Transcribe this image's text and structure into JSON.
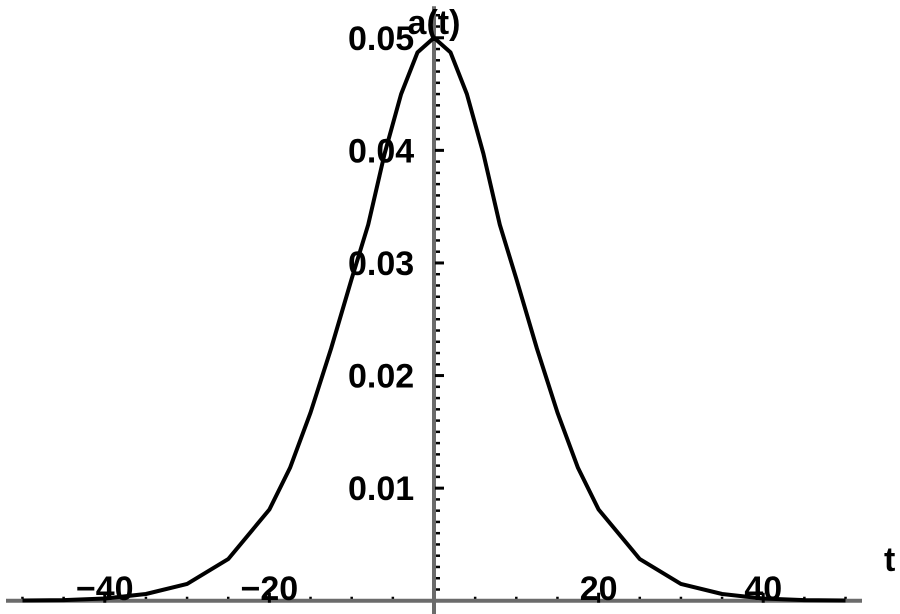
{
  "chart_data": {
    "type": "line",
    "title": "",
    "xlabel": "t",
    "ylabel": "a(t)",
    "xlim": [
      -52,
      52
    ],
    "ylim": [
      -0.001,
      0.053
    ],
    "grid": false,
    "x_ticks": [
      -40,
      -20,
      20,
      40
    ],
    "x_tick_labels": [
      "−40",
      "−20",
      "20",
      "40"
    ],
    "y_ticks": [
      0.01,
      0.02,
      0.03,
      0.04,
      0.05
    ],
    "y_tick_labels": [
      "0.01",
      "0.02",
      "0.03",
      "0.04",
      "0.05"
    ],
    "series": [
      {
        "x": [
          -50,
          -45,
          -40,
          -35,
          -30,
          -25,
          -20,
          -17.5,
          -15,
          -12.5,
          -10,
          -8,
          -6,
          -4,
          -2,
          0,
          2,
          4,
          6,
          8,
          10,
          12.5,
          15,
          17.5,
          20,
          25,
          30,
          35,
          40,
          45,
          50
        ],
        "y": [
          2e-05,
          6e-05,
          0.0002,
          0.0006,
          0.0015,
          0.0037,
          0.0081,
          0.0118,
          0.0167,
          0.0224,
          0.0286,
          0.0334,
          0.0397,
          0.045,
          0.0487,
          0.05,
          0.0487,
          0.045,
          0.0397,
          0.0334,
          0.0286,
          0.0224,
          0.0167,
          0.0118,
          0.0081,
          0.0037,
          0.0015,
          0.0006,
          0.0002,
          6e-05,
          2e-05
        ],
        "color": "#000000"
      }
    ],
    "axis_color": "#6b6b6b"
  }
}
